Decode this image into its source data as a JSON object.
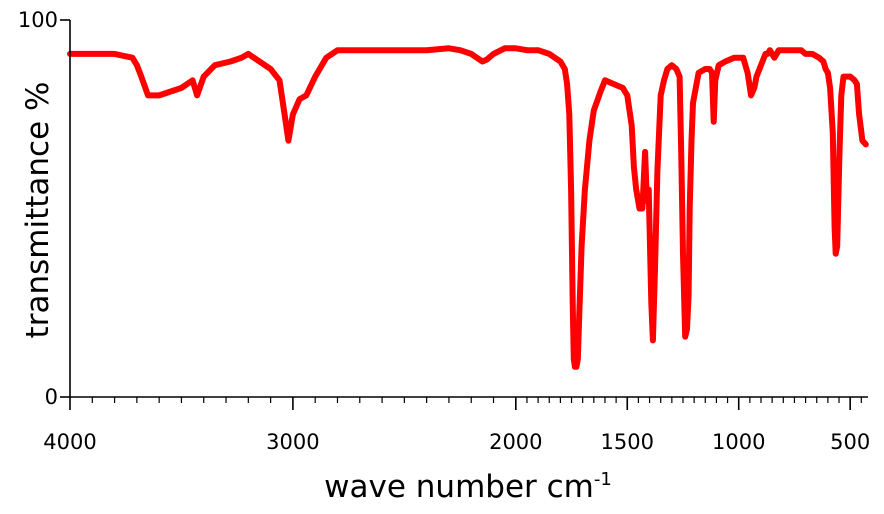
{
  "chart_data": {
    "type": "line",
    "title": "",
    "xlabel": "wave number cm",
    "xlabel_superscript": "-1",
    "ylabel": "transmittance %",
    "xlim": [
      4000,
      420
    ],
    "ylim": [
      0,
      100
    ],
    "x_reversed": true,
    "grid": false,
    "legend": "none",
    "x_ticks": [
      {
        "value": 4000,
        "label": "4000"
      },
      {
        "value": 3000,
        "label": "3000"
      },
      {
        "value": 2000,
        "label": "2000"
      },
      {
        "value": 1500,
        "label": "1500"
      },
      {
        "value": 1000,
        "label": "1000"
      },
      {
        "value": 500,
        "label": "500"
      }
    ],
    "y_ticks": [
      {
        "value": 100,
        "label": "100"
      },
      {
        "value": 0,
        "label": "0"
      }
    ],
    "series": [
      {
        "color": "#ff0000",
        "x": [
          4000,
          3900,
          3800,
          3720,
          3700,
          3680,
          3650,
          3600,
          3500,
          3450,
          3430,
          3400,
          3350,
          3280,
          3230,
          3200,
          3150,
          3100,
          3060,
          3040,
          3020,
          3000,
          2970,
          2940,
          2900,
          2850,
          2800,
          2700,
          2600,
          2500,
          2400,
          2300,
          2250,
          2200,
          2150,
          2130,
          2100,
          2050,
          2000,
          1950,
          1900,
          1850,
          1800,
          1780,
          1770,
          1760,
          1752,
          1745,
          1740,
          1735,
          1728,
          1722,
          1715,
          1705,
          1690,
          1670,
          1650,
          1620,
          1600,
          1560,
          1520,
          1500,
          1480,
          1470,
          1460,
          1445,
          1432,
          1420,
          1412,
          1404,
          1398,
          1392,
          1385,
          1375,
          1365,
          1350,
          1335,
          1320,
          1300,
          1280,
          1265,
          1258,
          1250,
          1240,
          1232,
          1225,
          1220,
          1212,
          1205,
          1180,
          1150,
          1130,
          1120,
          1112,
          1105,
          1090,
          1060,
          1020,
          980,
          960,
          950,
          945,
          930,
          920,
          900,
          880,
          870,
          860,
          840,
          820,
          800,
          760,
          720,
          700,
          670,
          640,
          620,
          610,
          600,
          590,
          578,
          570,
          565,
          558,
          548,
          540,
          530,
          520,
          500,
          480,
          470,
          460,
          445,
          430
        ],
        "y": [
          91,
          91,
          91,
          90,
          88,
          85,
          80,
          80,
          82,
          84,
          80,
          85,
          88,
          89,
          90,
          91,
          89,
          87,
          84,
          76,
          68,
          75,
          79,
          80,
          85,
          90,
          92,
          92,
          92,
          92,
          92,
          92.5,
          92,
          91,
          89,
          89.5,
          91,
          92.5,
          92.5,
          92,
          92,
          91,
          89,
          87,
          83,
          75,
          55,
          25,
          10,
          8,
          8,
          10,
          22,
          40,
          55,
          68,
          76,
          81,
          84,
          83,
          82,
          80,
          72,
          61,
          55,
          50,
          50,
          65,
          52,
          55,
          40,
          25,
          15,
          35,
          60,
          80,
          84,
          87,
          88,
          87,
          85,
          65,
          38,
          16,
          18,
          27,
          50,
          68,
          78,
          86,
          87,
          87,
          86,
          73,
          84,
          88,
          89,
          90,
          90,
          86,
          82,
          80,
          82,
          85,
          88,
          91,
          91,
          92,
          90,
          92,
          92,
          92,
          92,
          91,
          91,
          90,
          89,
          87,
          86,
          82,
          70,
          45,
          38,
          40,
          65,
          80,
          85,
          85,
          85,
          84,
          83,
          75,
          68,
          67
        ]
      }
    ]
  }
}
